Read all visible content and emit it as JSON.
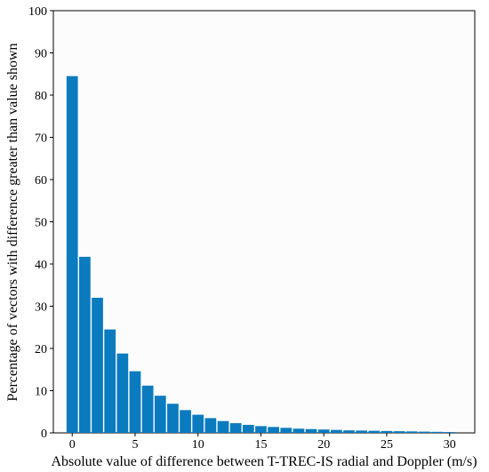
{
  "chart_data": {
    "type": "bar",
    "title": "",
    "xlabel": "Absolute value of difference between T-TREC-IS radial and Doppler (m/s)",
    "ylabel": "Percentage of vectors with difference greater than value shown",
    "xlim": [
      -1.5,
      32
    ],
    "ylim": [
      0,
      100
    ],
    "x_ticks": [
      0,
      5,
      10,
      15,
      20,
      25,
      30
    ],
    "y_ticks": [
      0,
      10,
      20,
      30,
      40,
      50,
      60,
      70,
      80,
      90,
      100
    ],
    "bar_color": "#0a7bbf",
    "grid": false,
    "x": [
      0,
      1,
      2,
      3,
      4,
      5,
      6,
      7,
      8,
      9,
      10,
      11,
      12,
      13,
      14,
      15,
      16,
      17,
      18,
      19,
      20,
      21,
      22,
      23,
      24,
      25,
      26,
      27,
      28,
      29,
      30
    ],
    "values": [
      84.5,
      41.7,
      32.0,
      24.5,
      18.8,
      14.6,
      11.2,
      8.8,
      6.9,
      5.4,
      4.3,
      3.5,
      2.8,
      2.3,
      1.9,
      1.6,
      1.4,
      1.2,
      1.0,
      0.9,
      0.8,
      0.7,
      0.6,
      0.55,
      0.5,
      0.45,
      0.4,
      0.35,
      0.3,
      0.25,
      0.2
    ]
  }
}
